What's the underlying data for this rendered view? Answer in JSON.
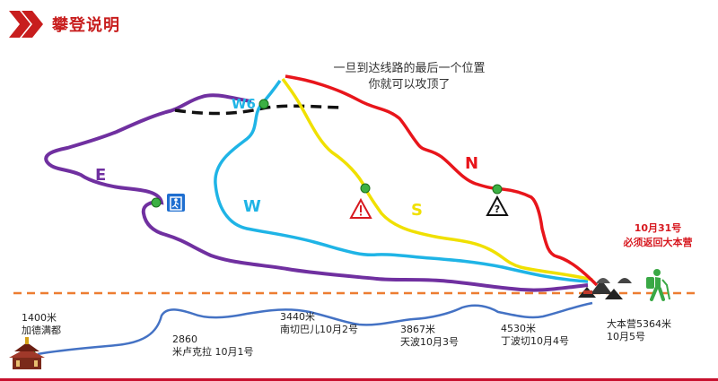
{
  "header": {
    "title": "攀登说明",
    "accent_color": "#c81e1e"
  },
  "note": {
    "line1": "一旦到达线路的最后一个位置",
    "line2": "你就可以攻顶了"
  },
  "routes": {
    "E": {
      "label": "E",
      "color": "#7030a0"
    },
    "W": {
      "label": "W",
      "color": "#1fb4e6"
    },
    "W6": {
      "label": "W6",
      "color": "#1fb4e6"
    },
    "S": {
      "label": "S",
      "color": "#f0e000"
    },
    "N": {
      "label": "N",
      "color": "#e8151b"
    },
    "traverse_color": "#111111"
  },
  "deadline": {
    "line1": "10月31号",
    "line2": "必须返回大本营"
  },
  "stations": [
    {
      "line1": "1400米",
      "line2": "加德满都"
    },
    {
      "line1": "2860",
      "line2": "米卢克拉 10月1号"
    },
    {
      "line1": "3440米",
      "line2": "南切巴儿10月2号"
    },
    {
      "line1": "3867米",
      "line2": "天波10月3号"
    },
    {
      "line1": "4530米",
      "line2": "丁波切10月4号"
    },
    {
      "line1": "大本营5364米",
      "line2": "10月5号"
    }
  ],
  "icons": [
    "chevron-icon",
    "exit-icon",
    "warning-icon",
    "unknown-hazard-icon",
    "temple-icon",
    "tents-icon",
    "hiker-icon"
  ],
  "colors": {
    "trek": "#4472c4",
    "dashed_line": "#ed7d31",
    "waypoint": "#3cb043",
    "bottom_bar": "#c8102e"
  }
}
